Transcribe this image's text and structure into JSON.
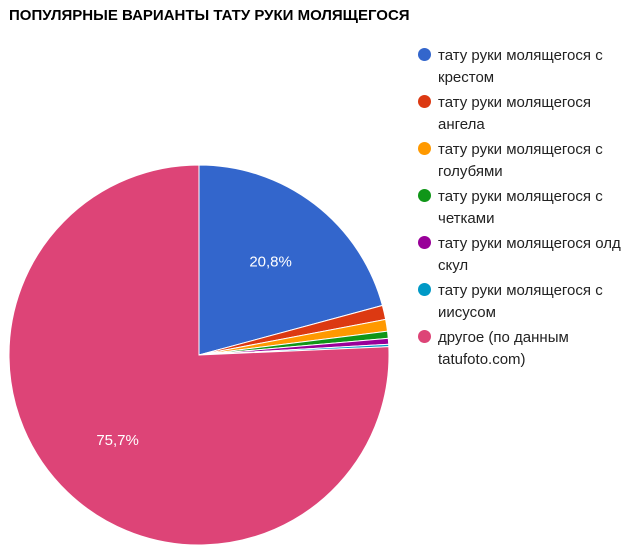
{
  "chart_data": {
    "type": "pie",
    "title": "ПОПУЛЯРНЫЕ ВАРИАНТЫ ТАТУ РУКИ МОЛЯЩЕГОСЯ",
    "legend_position": "right",
    "slices": [
      {
        "label": "тату руки молящегося с крестом",
        "value": 20.8,
        "color": "#3366cc",
        "display": "20,8%"
      },
      {
        "label": "тату руки молящегося ангела",
        "value": 1.2,
        "color": "#dc3912",
        "display": ""
      },
      {
        "label": "тату руки молящегося с голубями",
        "value": 1.0,
        "color": "#ff9900",
        "display": ""
      },
      {
        "label": "тату руки молящегося с четками",
        "value": 0.6,
        "color": "#109618",
        "display": ""
      },
      {
        "label": "тату руки молящегося олд скул",
        "value": 0.5,
        "color": "#990099",
        "display": ""
      },
      {
        "label": "тату руки молящегося с иисусом",
        "value": 0.2,
        "color": "#0099c6",
        "display": ""
      },
      {
        "label": "другое (по данным tatufoto.com)",
        "value": 75.7,
        "color": "#dd4477",
        "display": "75,7%"
      }
    ]
  }
}
